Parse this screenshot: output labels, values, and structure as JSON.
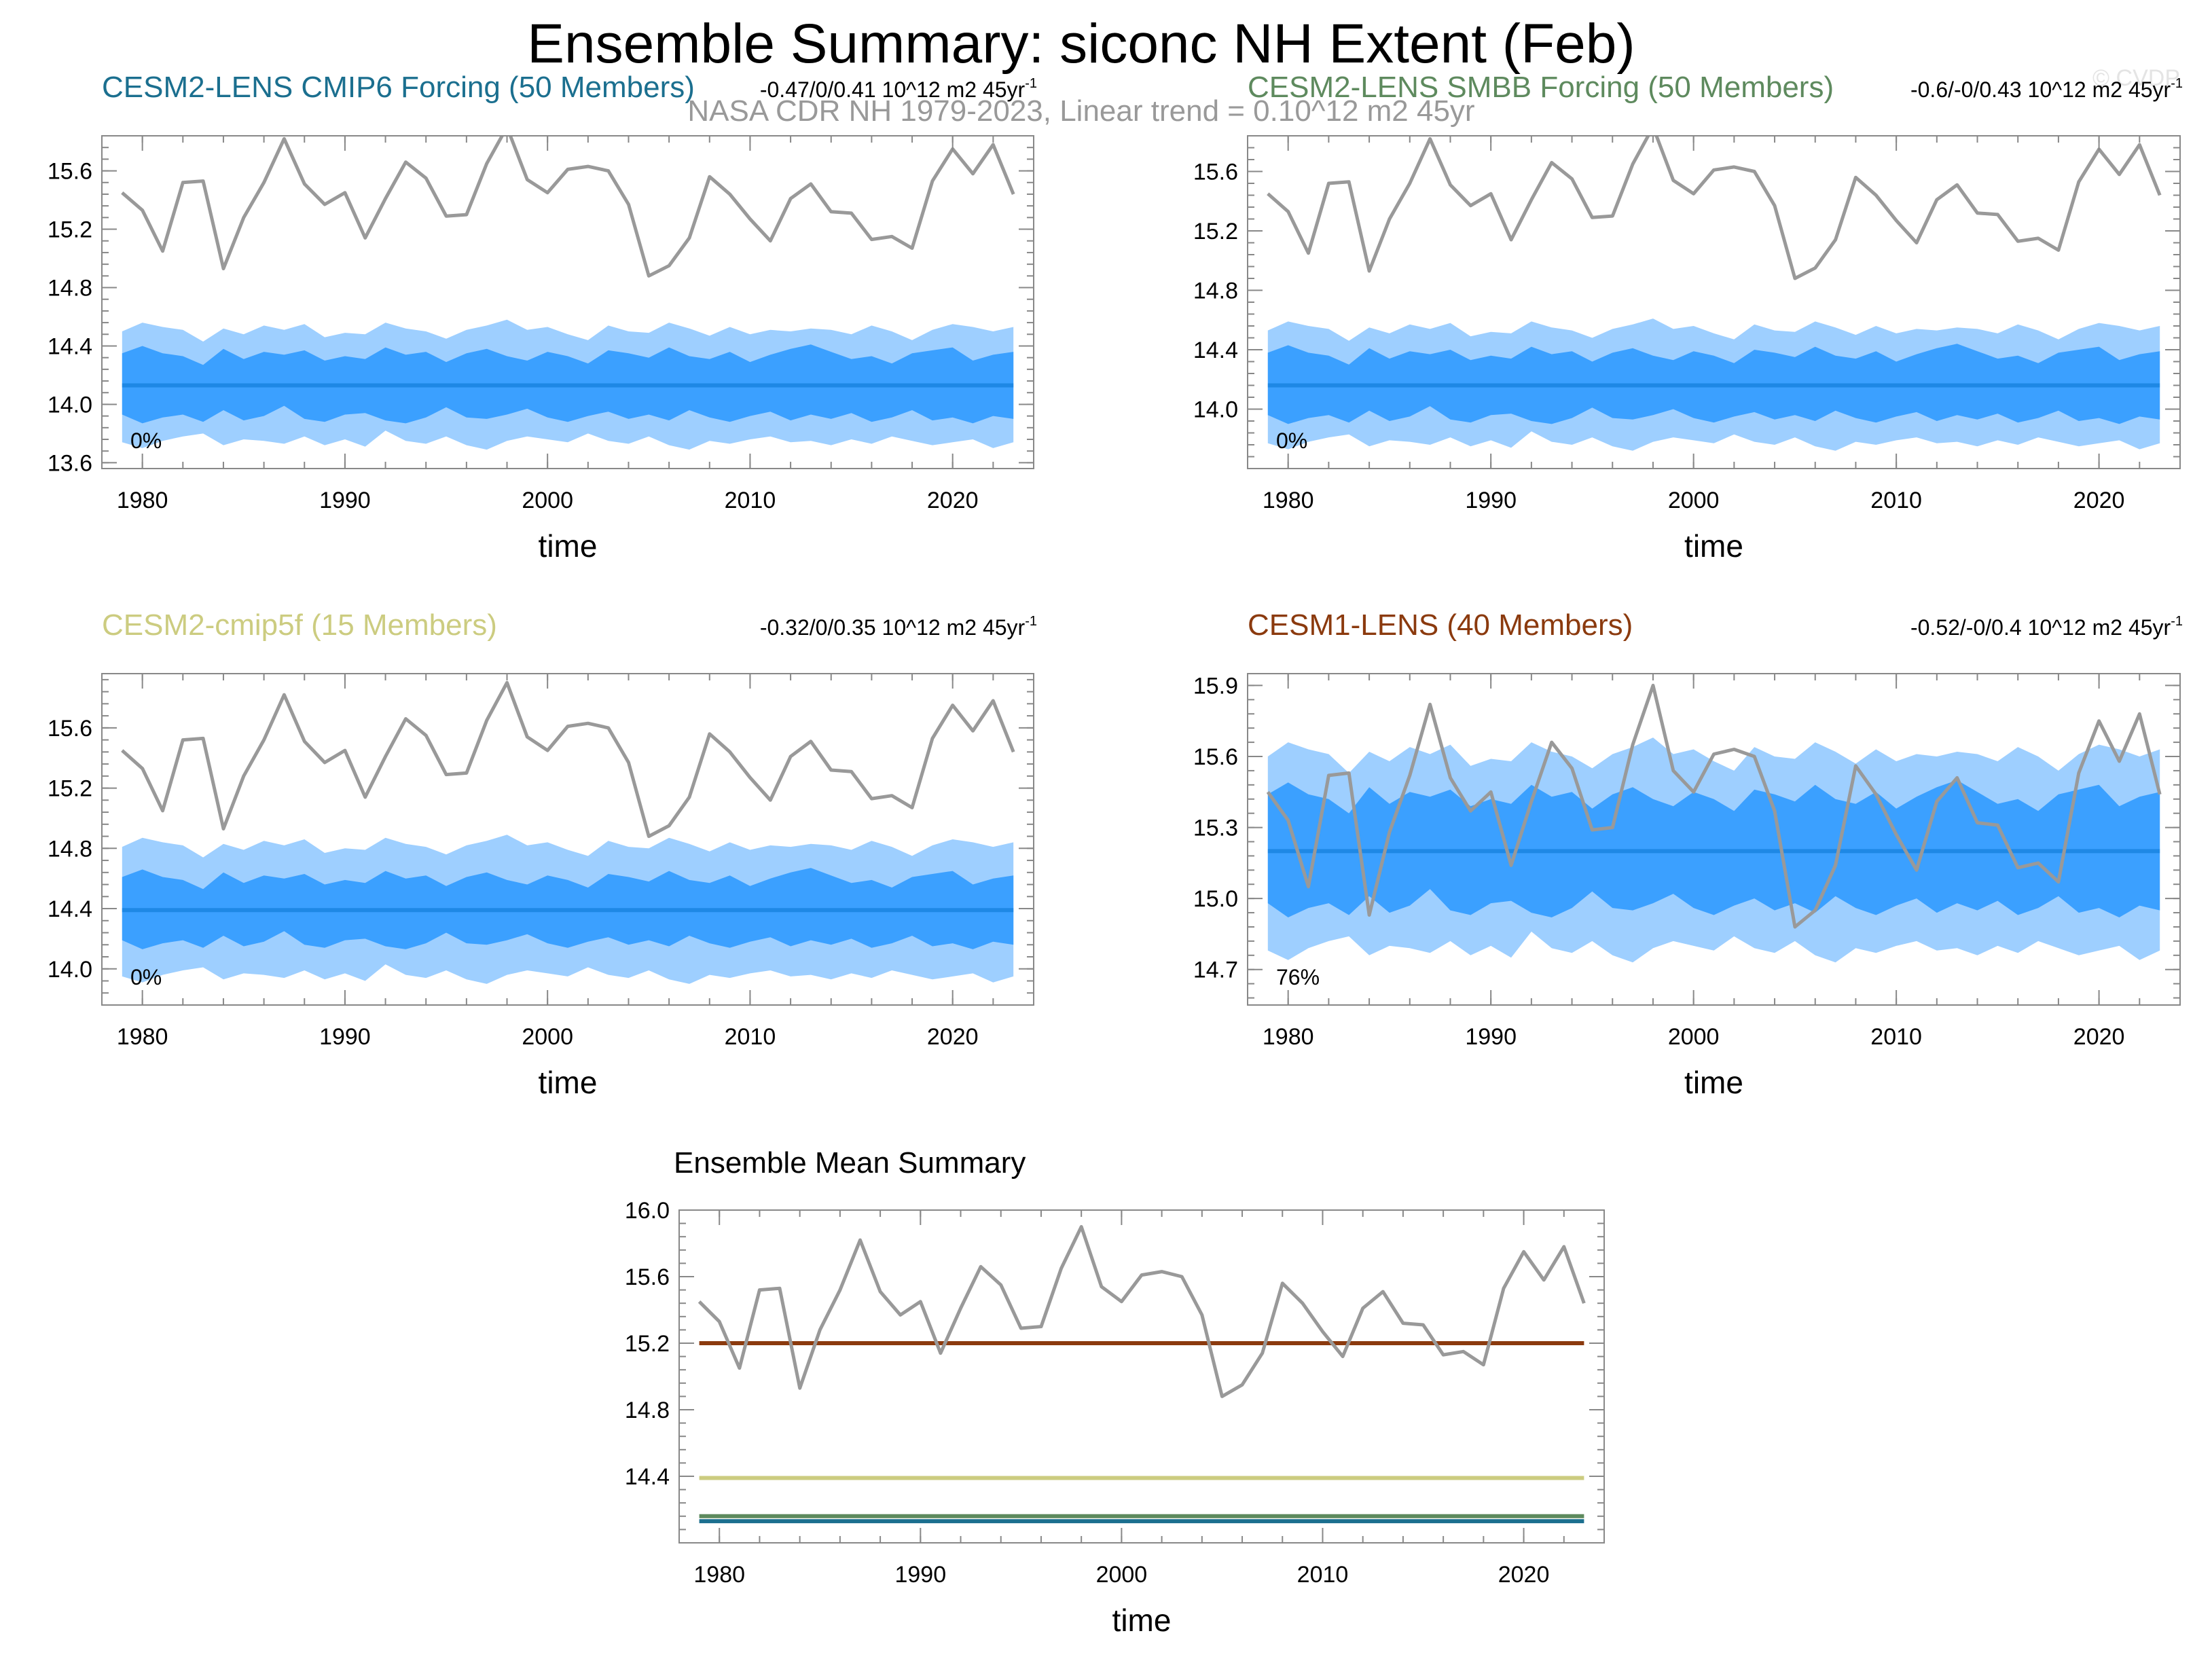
{
  "figure": {
    "title": "Ensemble Summary: siconc NH Extent (Feb)",
    "subtitle": "NASA CDR NH 1979-2023, Linear trend = 0.10^12 m2 45yr",
    "watermark": "© CVDP"
  },
  "colors": {
    "obs": "#999999",
    "band_outer": "#9ecfff",
    "band_inner": "#3ba0ff",
    "ens_mean": "#1e88e5",
    "cmip6": "#1b6f8f",
    "smbb": "#5e8a5e",
    "cmip5f": "#cccc80",
    "cesm1": "#8b3a0e"
  },
  "chart_data": [
    {
      "type": "line",
      "title": "CESM2-LENS CMIP6 Forcing (50 Members)",
      "trend_text": "-0.47/0/0.41 10^12 m2 45yr",
      "trend_exp": "-1",
      "percent_label": "0%",
      "xlabel": "time",
      "ylabel": "",
      "xlim": [
        1978,
        2024
      ],
      "ylim": [
        13.56,
        15.84
      ],
      "yticks": [
        13.6,
        14.0,
        14.4,
        14.8,
        15.2,
        15.6
      ],
      "ytick_labels": [
        "13.6",
        "14.0",
        "14.4",
        "14.8",
        "15.2",
        "15.6"
      ],
      "xticks": [
        1980,
        1990,
        2000,
        2010,
        2020
      ],
      "xtick_labels": [
        "1980",
        "1990",
        "2000",
        "2010",
        "2020"
      ],
      "ens_mean": 14.13,
      "band_center": 14.13,
      "inner_halfwidth": 0.2,
      "outer_halfwidth": 0.35
    },
    {
      "type": "line",
      "title": "CESM2-LENS SMBB Forcing (50 Members)",
      "trend_text": "-0.6/-0/0.43 10^12 m2 45yr",
      "trend_exp": "-1",
      "percent_label": "0%",
      "xlabel": "time",
      "ylabel": "",
      "xlim": [
        1978,
        2024
      ],
      "ylim": [
        13.6,
        15.84
      ],
      "yticks": [
        14.0,
        14.4,
        14.8,
        15.2,
        15.6
      ],
      "ytick_labels": [
        "14.0",
        "14.4",
        "14.8",
        "15.2",
        "15.6"
      ],
      "xticks": [
        1980,
        1990,
        2000,
        2010,
        2020
      ],
      "xtick_labels": [
        "1980",
        "1990",
        "2000",
        "2010",
        "2020"
      ],
      "ens_mean": 14.16,
      "band_center": 14.16,
      "inner_halfwidth": 0.2,
      "outer_halfwidth": 0.35
    },
    {
      "type": "line",
      "title": "CESM2-cmip5f (15 Members)",
      "trend_text": "-0.32/0/0.35 10^12 m2 45yr",
      "trend_exp": "-1",
      "percent_label": "0%",
      "xlabel": "time",
      "ylabel": "",
      "xlim": [
        1978,
        2024
      ],
      "ylim": [
        13.76,
        15.96
      ],
      "yticks": [
        14.0,
        14.4,
        14.8,
        15.2,
        15.6
      ],
      "ytick_labels": [
        "14.0",
        "14.4",
        "14.8",
        "15.2",
        "15.6"
      ],
      "xticks": [
        1980,
        1990,
        2000,
        2010,
        2020
      ],
      "xtick_labels": [
        "1980",
        "1990",
        "2000",
        "2010",
        "2020"
      ],
      "ens_mean": 14.39,
      "band_center": 14.39,
      "inner_halfwidth": 0.2,
      "outer_halfwidth": 0.4
    },
    {
      "type": "line",
      "title": "CESM1-LENS (40 Members)",
      "trend_text": "-0.52/-0/0.4 10^12 m2 45yr",
      "trend_exp": "-1",
      "percent_label": "76%",
      "xlabel": "time",
      "ylabel": "",
      "xlim": [
        1978,
        2024
      ],
      "ylim": [
        14.55,
        15.95
      ],
      "yticks": [
        14.7,
        15.0,
        15.3,
        15.6,
        15.9
      ],
      "ytick_labels": [
        "14.7",
        "15.0",
        "15.3",
        "15.6",
        "15.9"
      ],
      "xticks": [
        1980,
        1990,
        2000,
        2010,
        2020
      ],
      "xtick_labels": [
        "1980",
        "1990",
        "2000",
        "2010",
        "2020"
      ],
      "ens_mean": 15.2,
      "band_center": 15.2,
      "inner_halfwidth": 0.22,
      "outer_halfwidth": 0.38
    },
    {
      "type": "line",
      "title": "Ensemble Mean Summary",
      "xlabel": "time",
      "ylabel": "",
      "xlim": [
        1978,
        2024
      ],
      "ylim": [
        14.0,
        16.0
      ],
      "yticks": [
        14.4,
        14.8,
        15.2,
        15.6,
        16.0
      ],
      "ytick_labels": [
        "14.4",
        "14.8",
        "15.2",
        "15.6",
        "16.0"
      ],
      "xticks": [
        1980,
        1990,
        2000,
        2010,
        2020
      ],
      "xtick_labels": [
        "1980",
        "1990",
        "2000",
        "2010",
        "2020"
      ],
      "series": [
        {
          "name": "CESM1-LENS",
          "value": 15.2,
          "color": "#8b3a0e"
        },
        {
          "name": "CESM2-cmip5f",
          "value": 14.39,
          "color": "#cccc80"
        },
        {
          "name": "CESM2-LENS SMBB Forcing",
          "value": 14.16,
          "color": "#5e8a5e"
        },
        {
          "name": "CESM2-LENS CMIP6 Forcing",
          "value": 14.13,
          "color": "#1b6f8f"
        }
      ]
    }
  ],
  "observations": {
    "name": "NASA CDR NH 1979-2023",
    "years": [
      1979,
      1980,
      1981,
      1982,
      1983,
      1984,
      1985,
      1986,
      1987,
      1988,
      1989,
      1990,
      1991,
      1992,
      1993,
      1994,
      1995,
      1996,
      1997,
      1998,
      1999,
      2000,
      2001,
      2002,
      2003,
      2004,
      2005,
      2006,
      2007,
      2008,
      2009,
      2010,
      2011,
      2012,
      2013,
      2014,
      2015,
      2016,
      2017,
      2018,
      2019,
      2020,
      2021,
      2022,
      2023
    ],
    "values": [
      15.45,
      15.33,
      15.05,
      15.52,
      15.53,
      14.93,
      15.28,
      15.52,
      15.82,
      15.51,
      15.37,
      15.45,
      15.14,
      15.41,
      15.66,
      15.55,
      15.29,
      15.3,
      15.65,
      15.9,
      15.54,
      15.45,
      15.61,
      15.63,
      15.6,
      15.37,
      14.88,
      14.95,
      15.14,
      15.56,
      15.44,
      15.27,
      15.12,
      15.41,
      15.51,
      15.32,
      15.31,
      15.13,
      15.15,
      15.07,
      15.53,
      15.75,
      15.58,
      15.78,
      15.44
    ]
  },
  "band_perturbation": {
    "inner_up": [
      0.02,
      0.07,
      0.02,
      0.0,
      -0.06,
      0.05,
      -0.02,
      0.03,
      0.01,
      0.04,
      -0.03,
      0.0,
      -0.02,
      0.06,
      0.01,
      0.03,
      -0.04,
      0.02,
      0.05,
      0.0,
      -0.03,
      0.03,
      0.0,
      -0.05,
      0.04,
      0.02,
      -0.01,
      0.06,
      0.0,
      -0.02,
      0.03,
      -0.04,
      0.01,
      0.05,
      0.08,
      0.03,
      -0.02,
      0.0,
      -0.05,
      0.02,
      0.04,
      0.06,
      -0.03,
      0.01,
      0.03
    ],
    "inner_dn": [
      0.0,
      0.06,
      0.02,
      0.0,
      0.05,
      -0.03,
      0.04,
      0.01,
      -0.06,
      0.03,
      0.05,
      0.0,
      -0.01,
      0.04,
      0.06,
      0.02,
      -0.05,
      0.02,
      0.03,
      0.0,
      -0.04,
      0.02,
      0.05,
      0.01,
      -0.02,
      0.03,
      0.0,
      0.04,
      -0.03,
      0.02,
      0.05,
      0.01,
      -0.02,
      0.04,
      0.0,
      0.03,
      -0.01,
      0.05,
      0.02,
      -0.03,
      0.04,
      0.02,
      0.06,
      0.01,
      0.03
    ],
    "outer_up": [
      0.02,
      0.08,
      0.05,
      0.03,
      -0.05,
      0.04,
      0.0,
      0.06,
      0.03,
      0.07,
      -0.02,
      0.01,
      0.0,
      0.08,
      0.04,
      0.02,
      -0.03,
      0.03,
      0.06,
      0.1,
      0.03,
      0.05,
      0.0,
      -0.04,
      0.06,
      0.02,
      0.01,
      0.08,
      0.04,
      -0.01,
      0.05,
      0.0,
      0.03,
      0.02,
      0.04,
      0.03,
      0.0,
      0.06,
      0.02,
      -0.04,
      0.03,
      0.07,
      0.05,
      0.02,
      0.05
    ],
    "outer_dn": [
      0.04,
      0.08,
      0.03,
      0.0,
      -0.02,
      0.06,
      0.02,
      0.03,
      0.05,
      0.0,
      0.06,
      0.02,
      0.07,
      -0.04,
      0.03,
      0.05,
      0.0,
      0.06,
      0.09,
      0.03,
      0.0,
      0.02,
      0.04,
      -0.02,
      0.03,
      0.05,
      0.0,
      0.06,
      0.09,
      0.03,
      0.05,
      0.02,
      0.0,
      0.04,
      0.03,
      0.06,
      0.02,
      0.05,
      0.0,
      0.03,
      0.06,
      0.04,
      0.02,
      0.08,
      0.04
    ]
  }
}
